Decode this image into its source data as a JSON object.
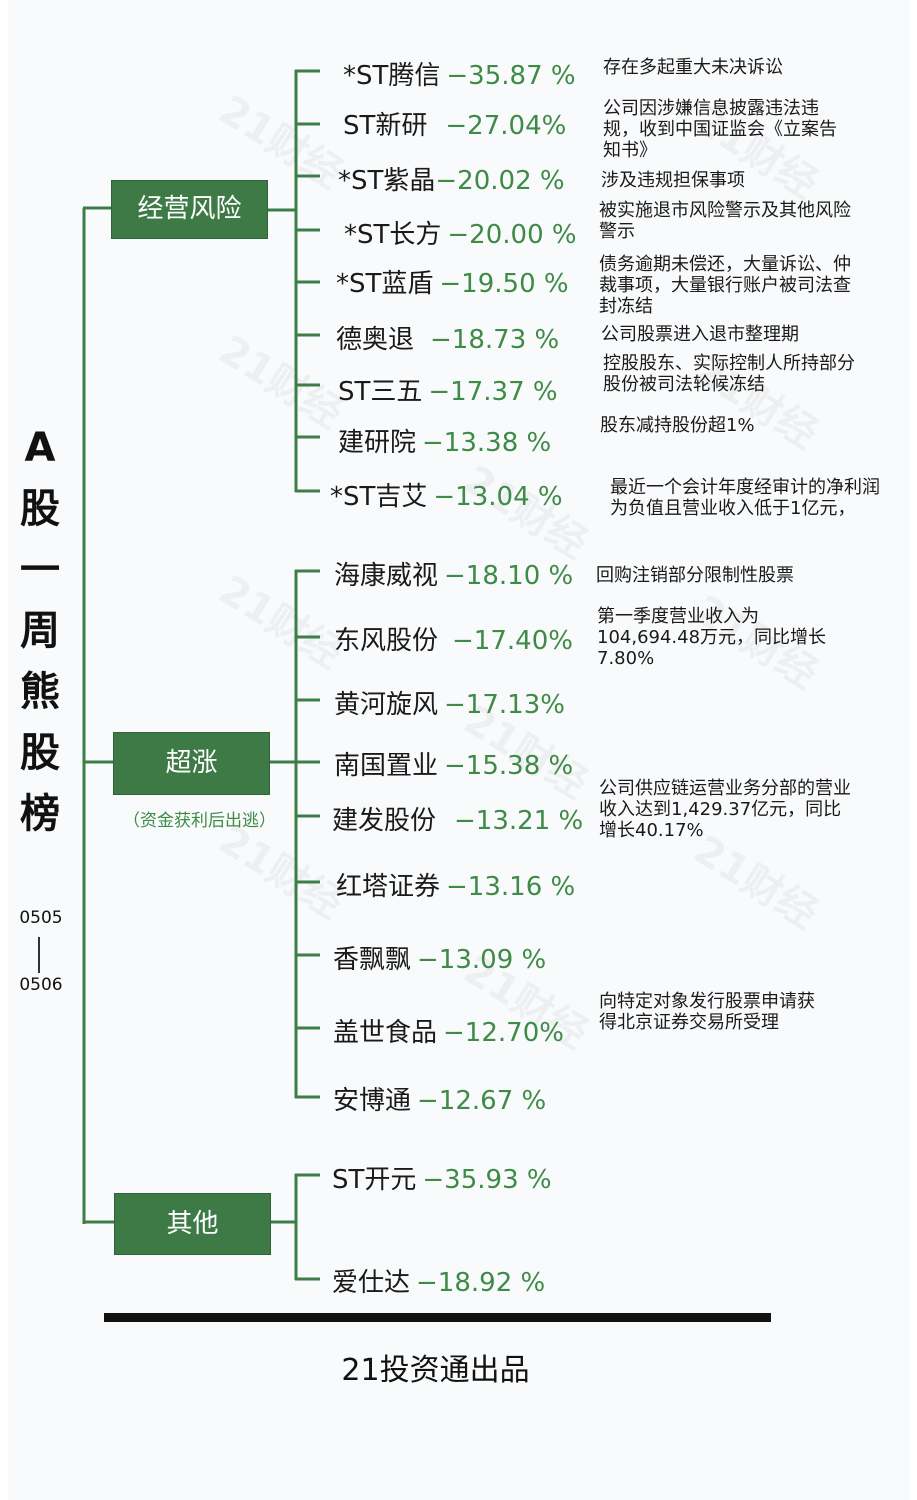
{
  "title_chars": [
    "A",
    "股",
    "一",
    "周",
    "熊",
    "股",
    "榜"
  ],
  "date_from": "0505",
  "date_to": "0506",
  "watermark": "21财经",
  "credit": "21投资通出品",
  "categories": [
    {
      "label": "经营风险"
    },
    {
      "label": "超涨",
      "note": "（资金获利后出逃）"
    },
    {
      "label": "其他"
    }
  ],
  "stocks": [
    {
      "name": "*ST腾信",
      "pct": "−35.87 %",
      "note": "存在多起重大未决诉讼"
    },
    {
      "name": "ST新研",
      "pct": "−27.04%",
      "note": "公司因涉嫌信息披露违法违规，收到中国证监会《立案告知书》"
    },
    {
      "name": "*ST紫晶",
      "pct": "−20.02 %",
      "note": "涉及违规担保事项"
    },
    {
      "name": "*ST长方",
      "pct": "−20.00 %",
      "note": "被实施退市风险警示及其他风险警示"
    },
    {
      "name": "*ST蓝盾",
      "pct": "−19.50 %",
      "note": "债务逾期未偿还，大量诉讼、仲裁事项，大量银行账户被司法查封冻结"
    },
    {
      "name": "德奥退",
      "pct": "−18.73 %",
      "note": "公司股票进入退市整理期"
    },
    {
      "name": "ST三五",
      "pct": "−17.37 %",
      "note": "控股股东、实际控制人所持部分股份被司法轮候冻结"
    },
    {
      "name": "建研院",
      "pct": "−13.38 %",
      "note": "股东减持股份超1%"
    },
    {
      "name": "*ST吉艾",
      "pct": "−13.04 %",
      "note": "最近一个会计年度经审计的净利润为负值且营业收入低于1亿元，"
    },
    {
      "name": "海康威视",
      "pct": "−18.10 %",
      "note": "回购注销部分限制性股票"
    },
    {
      "name": "东风股份",
      "pct": "−17.40%",
      "note": "第一季度营业收入为104,694.48万元，同比增长7.80%"
    },
    {
      "name": "黄河旋风",
      "pct": "−17.13%",
      "note": ""
    },
    {
      "name": "南国置业",
      "pct": "−15.38 %",
      "note": ""
    },
    {
      "name": "建发股份",
      "pct": "−13.21 %",
      "note": "公司供应链运营业务分部的营业收入达到1,429.37亿元，同比增长40.17%"
    },
    {
      "name": "红塔证券",
      "pct": "−13.16 %",
      "note": ""
    },
    {
      "name": "香飘飘",
      "pct": "−13.09 %",
      "note": ""
    },
    {
      "name": "盖世食品",
      "pct": "−12.70%",
      "note": "向特定对象发行股票申请获得北京证券交易所受理"
    },
    {
      "name": "安博通",
      "pct": "−12.67 %",
      "note": ""
    },
    {
      "name": "ST开元",
      "pct": "−35.93 %",
      "note": ""
    },
    {
      "name": "爱仕达",
      "pct": "−18.92 %",
      "note": ""
    }
  ]
}
